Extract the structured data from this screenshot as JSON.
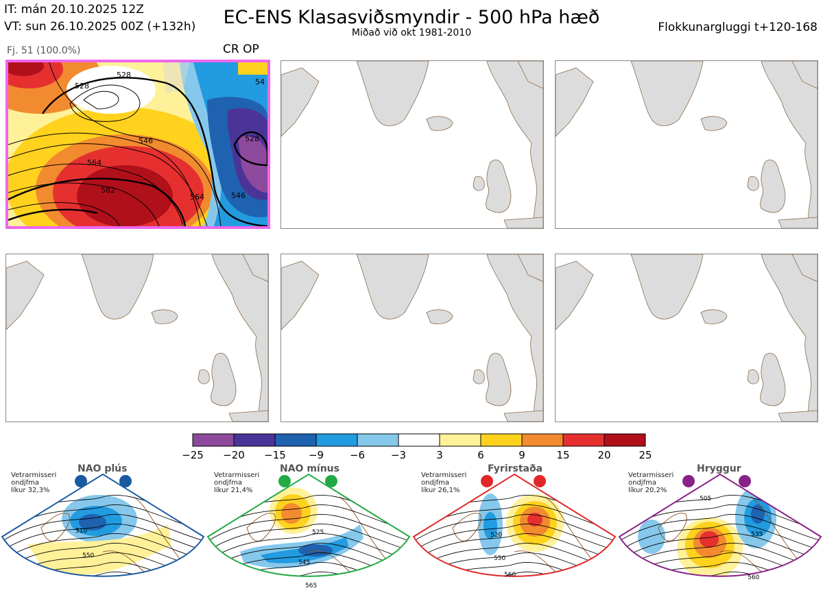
{
  "header": {
    "issue_time": "IT: mán 20.10.2025 12Z",
    "valid_time": "VT: sun 26.10.2025 00Z  (+132h)",
    "title": "EC-ENS Klasasviðsmyndir - 500 hPa hæð",
    "subtitle": "Miðað við okt 1981-2010",
    "window": "Flokkunargluggi t+120-168"
  },
  "panel1": {
    "member_count": "Fj. 51 (100.0%)",
    "label": "CR OP",
    "contour_labels": [
      "528",
      "528",
      "54",
      "546",
      "564",
      "582",
      "546",
      "528",
      "564"
    ]
  },
  "colorbar": {
    "colors": [
      "#8d4a9c",
      "#4b3497",
      "#1f62b0",
      "#229be0",
      "#86c8ec",
      "#ffffff",
      "#fff199",
      "#ffd21e",
      "#f28b2f",
      "#e63030",
      "#b0101a"
    ],
    "ticks": [
      "−25",
      "−20",
      "−15",
      "−9",
      "−6",
      "−3",
      "3",
      "6",
      "9",
      "15",
      "20",
      "25"
    ]
  },
  "regimes": [
    {
      "name": "NAO plús",
      "color": "#1a5aa0",
      "info_line1": "Vetrarmisseri",
      "info_line2": "ondjfma",
      "info_line3": "líkur 32,3%",
      "labels": [
        "510",
        "550"
      ]
    },
    {
      "name": "NAO mínus",
      "color": "#22aa44",
      "info_line1": "Vetrarmisseri",
      "info_line2": "ondjfma",
      "info_line3": "líkur 21,4%",
      "labels": [
        "525",
        "545",
        "565"
      ]
    },
    {
      "name": "Fyrirstaða",
      "color": "#e02828",
      "info_line1": "Vetrarmisseri",
      "info_line2": "ondjfma",
      "info_line3": "líkur 26,1%",
      "labels": [
        "520",
        "550",
        "560"
      ]
    },
    {
      "name": "Hryggur",
      "color": "#882288",
      "info_line1": "Vetrarmisseri",
      "info_line2": "ondjfma",
      "info_line3": "líkur 20,2%",
      "labels": [
        "505",
        "535",
        "560"
      ]
    }
  ]
}
